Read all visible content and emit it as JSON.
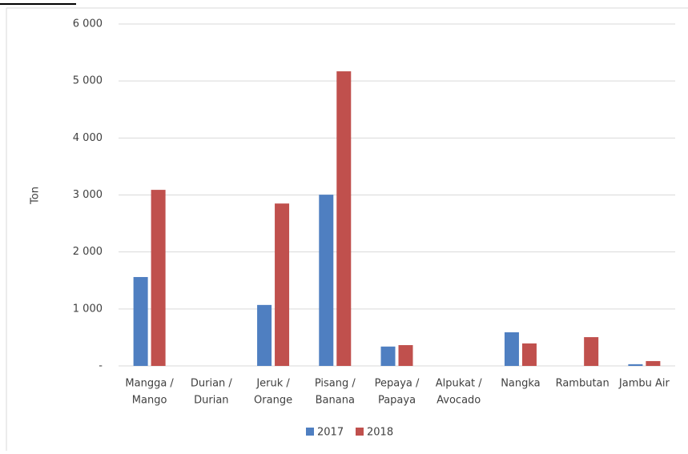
{
  "chart_data": {
    "type": "bar",
    "y_label": "Ton",
    "categories": [
      [
        "Mangga /",
        "Mango"
      ],
      [
        "Durian /",
        "Durian"
      ],
      [
        "Jeruk /",
        "Orange"
      ],
      [
        "Pisang /",
        "Banana"
      ],
      [
        "Pepaya /",
        "Papaya"
      ],
      [
        "Alpukat /",
        "Avocado"
      ],
      [
        "Nangka"
      ],
      [
        "Rambutan"
      ],
      [
        "Jambu Air"
      ]
    ],
    "series": [
      {
        "name": "2017",
        "color": "#4f7fc1",
        "values": [
          1560,
          0,
          1070,
          3005,
          340,
          0,
          590,
          0,
          30
        ]
      },
      {
        "name": "2018",
        "color": "#c0504d",
        "values": [
          3090,
          0,
          2850,
          5170,
          365,
          0,
          395,
          505,
          85
        ]
      }
    ],
    "ylim": [
      0,
      6000
    ],
    "yticks": [
      {
        "value": 0,
        "label": "-"
      },
      {
        "value": 1000,
        "label": "1 000"
      },
      {
        "value": 2000,
        "label": "2 000"
      },
      {
        "value": 3000,
        "label": "3 000"
      },
      {
        "value": 4000,
        "label": "4 000"
      },
      {
        "value": 5000,
        "label": "5 000"
      },
      {
        "value": 6000,
        "label": "6 000"
      }
    ],
    "grid": true,
    "legend": "bottom"
  }
}
